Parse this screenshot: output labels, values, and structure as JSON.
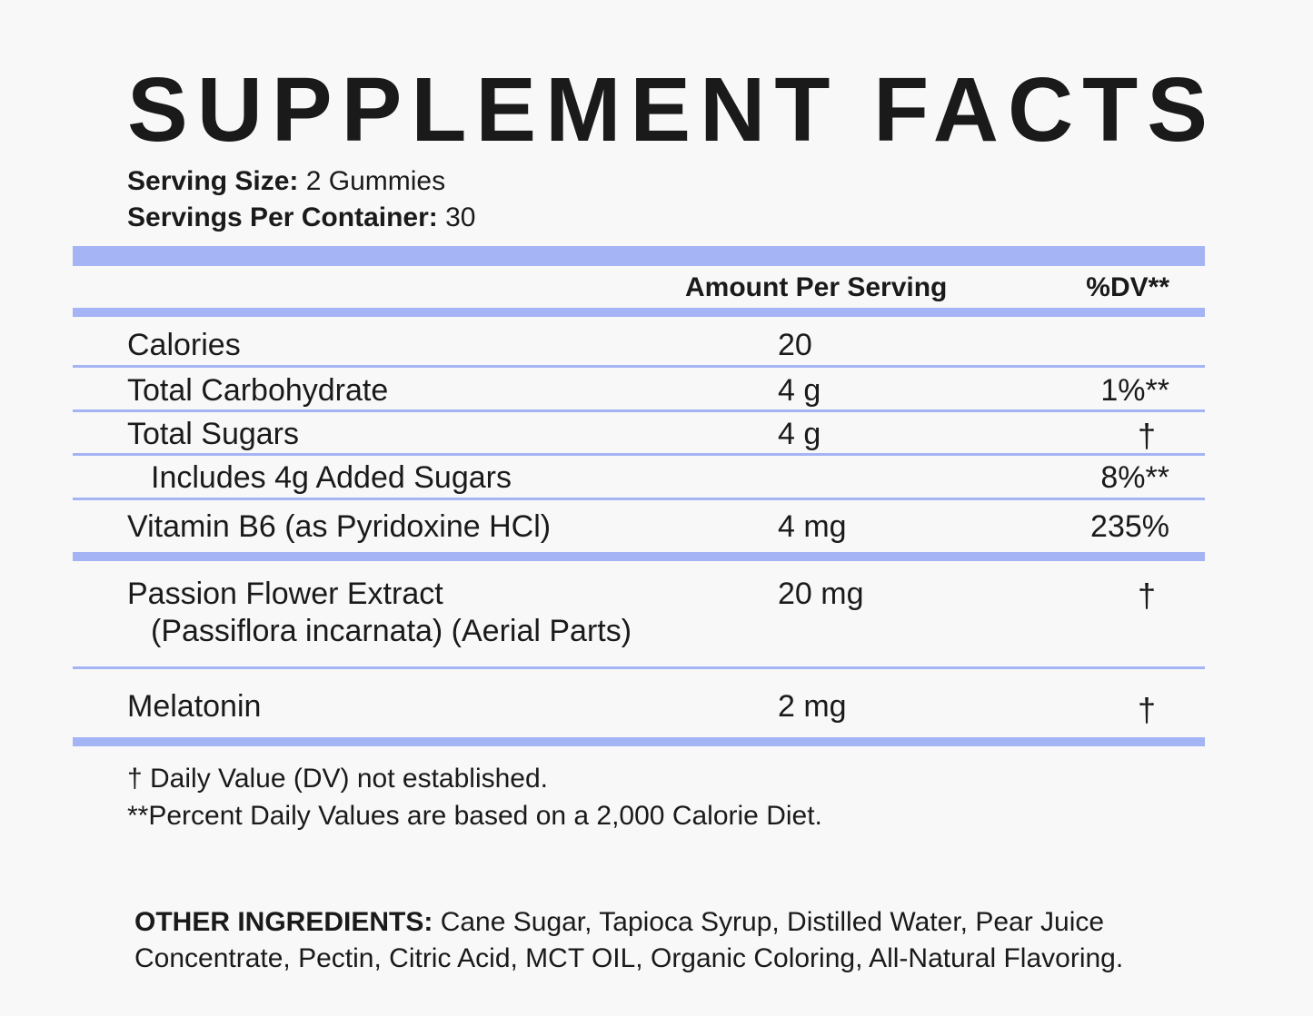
{
  "title": "SUPPLEMENT FACTS",
  "serving": {
    "size_label": "Serving Size:",
    "size_value": "2 Gummies",
    "per_container_label": "Servings Per Container:",
    "per_container_value": "30"
  },
  "table": {
    "header_amount": "Amount Per Serving",
    "header_dv": "%DV**",
    "rows": [
      {
        "name": "Calories",
        "amount": "20",
        "dv": ""
      },
      {
        "name": "Total Carbohydrate",
        "amount": "4 g",
        "dv": "1%**"
      },
      {
        "name": "Total Sugars",
        "amount": "4 g",
        "dv": "†"
      },
      {
        "name": "Includes 4g Added Sugars",
        "amount": "",
        "dv": "8%**"
      },
      {
        "name": "Vitamin B6 (as Pyridoxine HCl)",
        "amount": "4 mg",
        "dv": "235%"
      },
      {
        "name": "Passion Flower Extract",
        "name_line2": "(Passiflora incarnata) (Aerial Parts)",
        "amount": "20 mg",
        "dv": "†"
      },
      {
        "name": "Melatonin",
        "amount": "2 mg",
        "dv": "†"
      }
    ]
  },
  "footnotes": {
    "dagger": "† Daily Value (DV) not established.",
    "percent": "**Percent Daily Values are based on a 2,000 Calorie Diet."
  },
  "other_ingredients": {
    "label": "OTHER INGREDIENTS:",
    "text": " Cane Sugar, Tapioca Syrup, Distilled Water, Pear Juice Concentrate, Pectin, Citric Acid, MCT OIL, Organic Coloring, All-Natural Flavoring."
  },
  "colors": {
    "accent": "#a4b4f4",
    "text": "#1a1a1a",
    "background": "#f8f8f8"
  }
}
